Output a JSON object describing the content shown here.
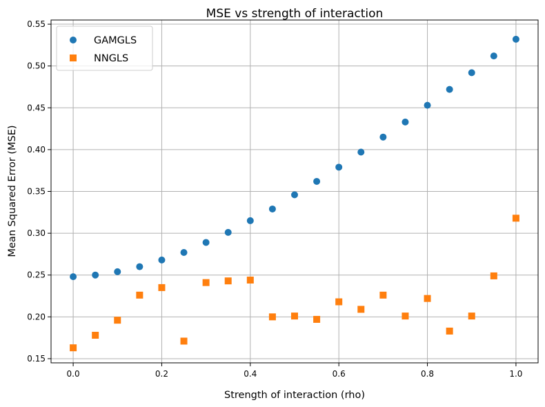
{
  "chart_data": {
    "type": "scatter",
    "title": "MSE vs strength of interaction",
    "xlabel": "Strength of interaction (rho)",
    "ylabel": "Mean Squared Error (MSE)",
    "xlim": [
      -0.05,
      1.05
    ],
    "ylim": [
      0.145,
      0.555
    ],
    "xticks": [
      0.0,
      0.2,
      0.4,
      0.6,
      0.8,
      1.0
    ],
    "xtick_labels": [
      "0.0",
      "0.2",
      "0.4",
      "0.6",
      "0.8",
      "1.0"
    ],
    "yticks": [
      0.15,
      0.2,
      0.25,
      0.3,
      0.35,
      0.4,
      0.45,
      0.5,
      0.55
    ],
    "ytick_labels": [
      "0.15",
      "0.20",
      "0.25",
      "0.30",
      "0.35",
      "0.40",
      "0.45",
      "0.50",
      "0.55"
    ],
    "grid": true,
    "legend_position": "top-left",
    "x": [
      0.0,
      0.05,
      0.1,
      0.15,
      0.2,
      0.25,
      0.3,
      0.35,
      0.4,
      0.45,
      0.5,
      0.55,
      0.6,
      0.65,
      0.7,
      0.75,
      0.8,
      0.85,
      0.9,
      0.95,
      1.0
    ],
    "series": [
      {
        "name": "GAMGLS",
        "marker": "circle",
        "color": "#1f77b4",
        "values": [
          0.248,
          0.25,
          0.254,
          0.26,
          0.268,
          0.277,
          0.289,
          0.301,
          0.315,
          0.329,
          0.346,
          0.362,
          0.379,
          0.397,
          0.415,
          0.433,
          0.453,
          0.472,
          0.492,
          0.512,
          0.532
        ]
      },
      {
        "name": "NNGLS",
        "marker": "square",
        "color": "#ff7f0e",
        "values": [
          0.163,
          0.178,
          0.196,
          0.226,
          0.235,
          0.171,
          0.241,
          0.243,
          0.244,
          0.2,
          0.201,
          0.197,
          0.218,
          0.209,
          0.226,
          0.201,
          0.222,
          0.183,
          0.201,
          0.249,
          0.318
        ]
      }
    ]
  }
}
